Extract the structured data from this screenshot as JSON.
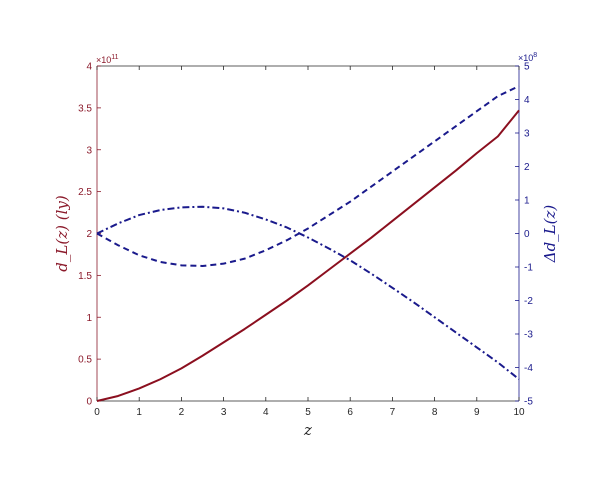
{
  "chart_data": {
    "type": "line",
    "xlabel": "z",
    "ylabel_left": "d_L(z) (ly)",
    "ylabel_right": "Δd_L(z)",
    "xlim": [
      0,
      10
    ],
    "ylim_left": [
      0,
      4
    ],
    "ylim_right": [
      -5,
      5
    ],
    "left_exponent_label": "×10",
    "left_exponent_power": "11",
    "right_exponent_label": "×10",
    "right_exponent_power": "8",
    "x_ticks": [
      "0",
      "1",
      "2",
      "3",
      "4",
      "5",
      "6",
      "7",
      "8",
      "9",
      "10"
    ],
    "y_left_ticks": [
      "0",
      "0.5",
      "1",
      "1.5",
      "2",
      "2.5",
      "3",
      "3.5",
      "4"
    ],
    "y_right_ticks": [
      "-5",
      "-4",
      "-3",
      "-2",
      "-1",
      "0",
      "1",
      "2",
      "3",
      "4",
      "5"
    ],
    "colors": {
      "left": "#8b1a2b",
      "right": "#1a1a8c",
      "axis": "#262626"
    },
    "series": [
      {
        "axis": "left",
        "style": "solid",
        "color": "#8b0f1f",
        "x": [
          0,
          0.5,
          1,
          1.5,
          2,
          2.5,
          3,
          3.5,
          4,
          4.5,
          5,
          5.5,
          6,
          6.5,
          7,
          7.5,
          8,
          8.5,
          9,
          9.5,
          10
        ],
        "y": [
          0,
          0.06,
          0.15,
          0.26,
          0.39,
          0.54,
          0.7,
          0.86,
          1.03,
          1.2,
          1.38,
          1.57,
          1.76,
          1.95,
          2.15,
          2.35,
          2.55,
          2.75,
          2.96,
          3.16,
          3.47
        ]
      },
      {
        "axis": "right",
        "style": "dashed",
        "color": "#1a1a8c",
        "x": [
          0,
          0.5,
          1,
          1.5,
          2,
          2.5,
          3,
          3.5,
          4,
          4.5,
          5,
          5.5,
          6,
          6.5,
          7,
          7.5,
          8,
          8.5,
          9,
          9.5,
          10
        ],
        "y": [
          0,
          -0.35,
          -0.65,
          -0.85,
          -0.95,
          -0.97,
          -0.9,
          -0.75,
          -0.5,
          -0.2,
          0.15,
          0.55,
          0.95,
          1.4,
          1.85,
          2.3,
          2.75,
          3.2,
          3.65,
          4.1,
          4.4
        ]
      },
      {
        "axis": "right",
        "style": "dashdot",
        "color": "#1a1a8c",
        "x": [
          0,
          0.5,
          1,
          1.5,
          2,
          2.5,
          3,
          3.5,
          4,
          4.5,
          5,
          5.5,
          6,
          6.5,
          7,
          7.5,
          8,
          8.5,
          9,
          9.5,
          10
        ],
        "y": [
          0,
          0.3,
          0.55,
          0.7,
          0.78,
          0.8,
          0.75,
          0.62,
          0.42,
          0.18,
          -0.12,
          -0.45,
          -0.8,
          -1.2,
          -1.62,
          -2.05,
          -2.5,
          -2.95,
          -3.4,
          -3.85,
          -4.35
        ]
      }
    ]
  }
}
